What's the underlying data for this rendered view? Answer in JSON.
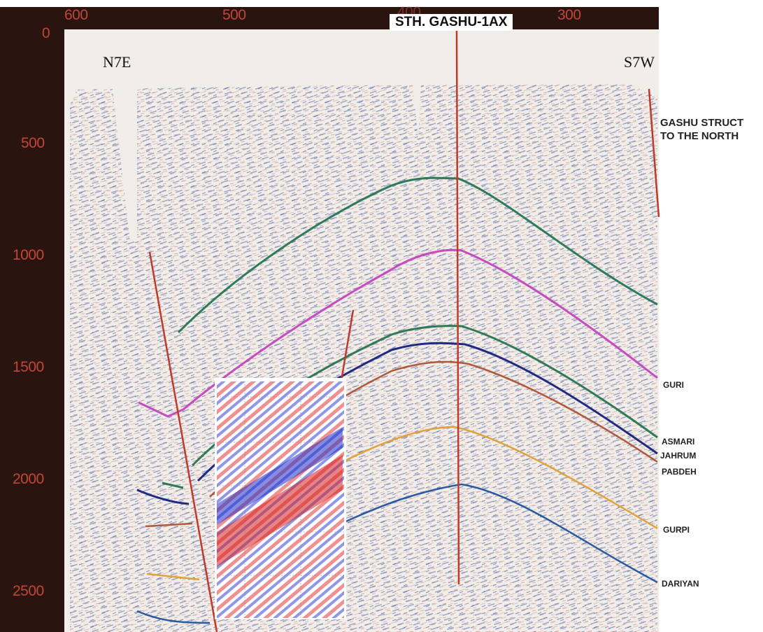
{
  "title": {
    "well_name": "STH. GASHU-1AX"
  },
  "direction": {
    "left": "N7E",
    "right": "S7W"
  },
  "note": {
    "text": "GASHU STRUCT\nTO THE NORTH"
  },
  "top_axis": {
    "labels": [
      "600",
      "500",
      "400",
      "300"
    ]
  },
  "left_axis": {
    "labels": [
      "0",
      "500",
      "1000",
      "1500",
      "2000",
      "2500"
    ]
  },
  "horizons": [
    {
      "name": "",
      "color": "#2e7a5c"
    },
    {
      "name": "GURI",
      "color": "#c64bc0"
    },
    {
      "name": "ASMARI",
      "color": "#2f7a55"
    },
    {
      "name": "JAHRUM",
      "color": "#1f2a80"
    },
    {
      "name": "PABDEH",
      "color": "#b0583a"
    },
    {
      "name": "GURPI",
      "color": "#e0a23a"
    },
    {
      "name": "DARIYAN",
      "color": "#2a5aa0"
    }
  ],
  "colors": {
    "fault": "#c0392b",
    "background": "#f1eeea",
    "border": "#2a1410"
  }
}
